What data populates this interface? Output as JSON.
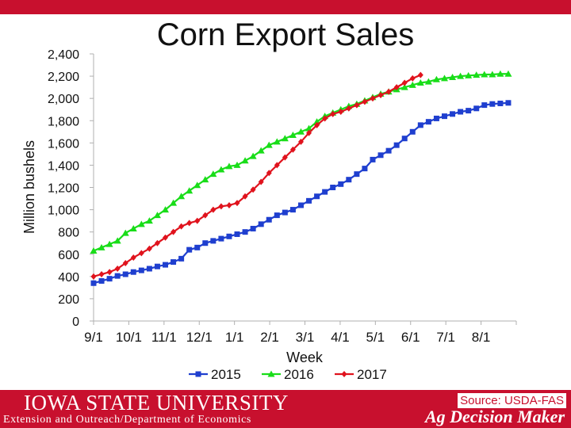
{
  "chart_data": {
    "type": "line",
    "title": "Corn Export Sales",
    "xlabel": "Week",
    "ylabel": "Million bushels",
    "ylim": [
      0,
      2400
    ],
    "yticks": [
      "0",
      "200",
      "400",
      "600",
      "800",
      "1,000",
      "1,200",
      "1,400",
      "1,600",
      "1,800",
      "2,000",
      "2,200",
      "2,400"
    ],
    "xticks": [
      "9/1",
      "10/1",
      "11/1",
      "12/1",
      "1/1",
      "2/1",
      "3/1",
      "4/1",
      "5/1",
      "6/1",
      "7/1",
      "8/1"
    ],
    "weeks_total": 53,
    "grid": false,
    "legend": "bottom",
    "series": [
      {
        "name": "2015",
        "color": "#1f3fcf",
        "marker": "square",
        "values": [
          340,
          360,
          380,
          405,
          420,
          440,
          455,
          470,
          490,
          505,
          530,
          560,
          640,
          660,
          700,
          720,
          740,
          760,
          780,
          800,
          830,
          870,
          910,
          950,
          975,
          1000,
          1040,
          1080,
          1120,
          1160,
          1200,
          1230,
          1270,
          1320,
          1370,
          1450,
          1490,
          1530,
          1580,
          1640,
          1700,
          1760,
          1790,
          1820,
          1840,
          1860,
          1880,
          1890,
          1910,
          1940,
          1950,
          1955,
          1960
        ]
      },
      {
        "name": "2016",
        "color": "#19dd19",
        "marker": "triangle",
        "values": [
          630,
          660,
          690,
          720,
          790,
          830,
          870,
          900,
          950,
          1000,
          1060,
          1120,
          1170,
          1220,
          1270,
          1320,
          1360,
          1390,
          1400,
          1440,
          1480,
          1530,
          1580,
          1610,
          1640,
          1670,
          1700,
          1730,
          1790,
          1840,
          1870,
          1900,
          1930,
          1950,
          1980,
          2010,
          2040,
          2060,
          2080,
          2100,
          2120,
          2140,
          2150,
          2170,
          2180,
          2190,
          2200,
          2205,
          2210,
          2215,
          2215,
          2220,
          2220
        ]
      },
      {
        "name": "2017",
        "color": "#e0131d",
        "marker": "diamond",
        "values": [
          400,
          420,
          440,
          470,
          520,
          570,
          610,
          650,
          700,
          750,
          800,
          850,
          880,
          900,
          950,
          1000,
          1030,
          1040,
          1060,
          1120,
          1180,
          1250,
          1330,
          1400,
          1470,
          1540,
          1610,
          1690,
          1760,
          1820,
          1860,
          1880,
          1910,
          1940,
          1970,
          2000,
          2030,
          2060,
          2100,
          2140,
          2180,
          2210
        ]
      }
    ]
  },
  "footer": {
    "university": "IOWA STATE UNIVERSITY",
    "department": "Extension and Outreach/Department of Economics",
    "brand": "Ag Decision Maker",
    "source": "Source: USDA-FAS"
  }
}
